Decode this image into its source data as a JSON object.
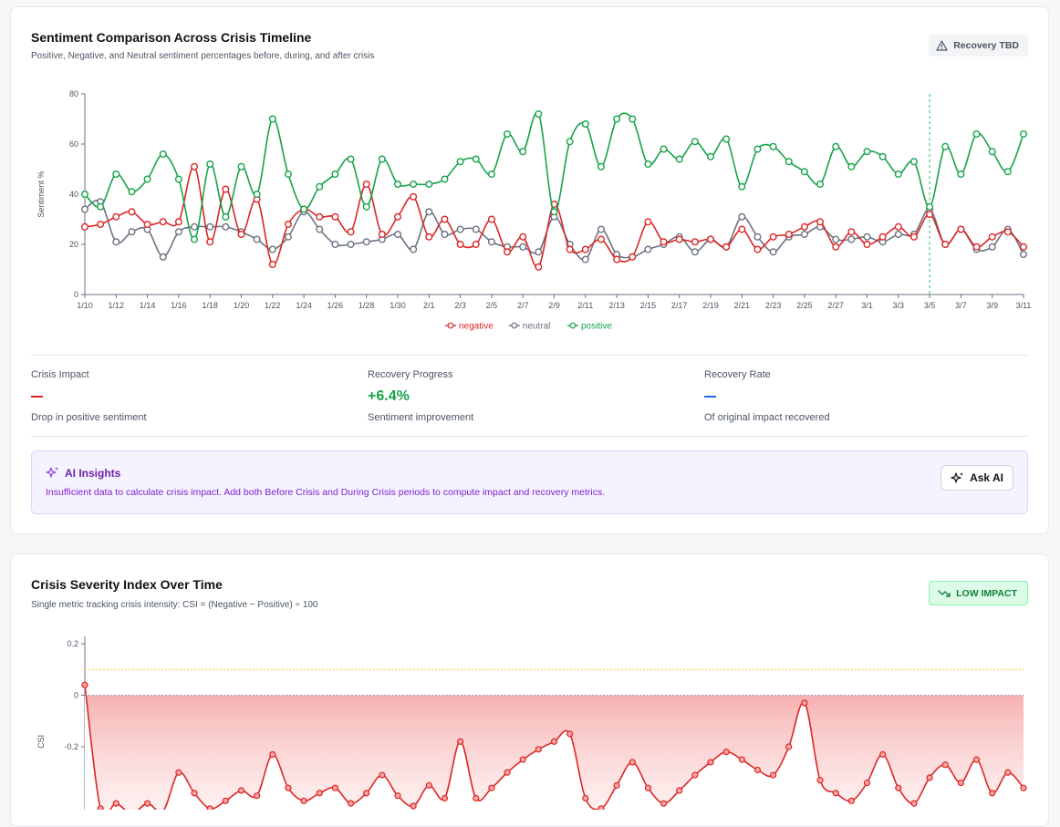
{
  "card1": {
    "title": "Sentiment Comparison Across Crisis Timeline",
    "subtitle": "Positive, Negative, and Neutral sentiment percentages before, during, and after crisis",
    "badge": "Recovery TBD"
  },
  "metrics": {
    "impact": {
      "label": "Crisis Impact",
      "value": "—",
      "desc": "Drop in positive sentiment"
    },
    "progress": {
      "label": "Recovery Progress",
      "value": "+6.4%",
      "desc": "Sentiment improvement"
    },
    "rate": {
      "label": "Recovery Rate",
      "value": "—",
      "desc": "Of original impact recovered"
    }
  },
  "ai": {
    "title": "AI Insights",
    "text": "Insufficient data to calculate crisis impact. Add both Before Crisis and During Crisis periods to compute impact and recovery metrics.",
    "button": "Ask AI"
  },
  "card2": {
    "title": "Crisis Severity Index Over Time",
    "subtitle": "Single metric tracking crisis intensity: CSI = (Negative − Positive) ÷ 100",
    "badge": "LOW IMPACT"
  },
  "colors": {
    "negative": "#dc2626",
    "neutral": "#6b7280",
    "positive": "#16a34a",
    "marker": "#22c55e",
    "threshold": "#facc15"
  },
  "chart_data": [
    {
      "type": "line",
      "ylabel": "Sentiment %",
      "ylim": [
        0,
        80
      ],
      "yticks": [
        0,
        20,
        40,
        60,
        80
      ],
      "xticks": [
        "1/10",
        "1/12",
        "1/14",
        "1/16",
        "1/18",
        "1/20",
        "1/22",
        "1/24",
        "1/26",
        "1/28",
        "1/30",
        "2/1",
        "2/3",
        "2/5",
        "2/7",
        "2/9",
        "2/11",
        "2/13",
        "2/15",
        "2/17",
        "2/19",
        "2/21",
        "2/23",
        "2/25",
        "2/27",
        "3/1",
        "3/3",
        "3/5",
        "3/7",
        "3/9",
        "3/11"
      ],
      "marker_x": "3/5",
      "legend": "bottom-center",
      "series": [
        {
          "name": "negative",
          "values": [
            27,
            28,
            31,
            33,
            28,
            29,
            29,
            51,
            21,
            42,
            24,
            38,
            12,
            28,
            34,
            31,
            31,
            25,
            44,
            24,
            31,
            39,
            23,
            30,
            20,
            20,
            30,
            17,
            23,
            11,
            36,
            18,
            18,
            22,
            14,
            15,
            29,
            21,
            22,
            21,
            22,
            19,
            26,
            18,
            23,
            24,
            27,
            29,
            19,
            25,
            20,
            23,
            27,
            23,
            32,
            20,
            26,
            19,
            23,
            25,
            19
          ]
        },
        {
          "name": "neutral",
          "values": [
            34,
            37,
            21,
            25,
            26,
            15,
            25,
            27,
            27,
            27,
            25,
            22,
            18,
            23,
            33,
            26,
            20,
            20,
            21,
            22,
            24,
            18,
            33,
            24,
            26,
            26,
            21,
            19,
            19,
            17,
            31,
            20,
            14,
            26,
            16,
            15,
            18,
            20,
            23,
            17,
            22,
            19,
            31,
            23,
            17,
            23,
            24,
            27,
            22,
            22,
            23,
            21,
            24,
            24,
            34,
            20,
            26,
            18,
            19,
            26,
            16
          ]
        },
        {
          "name": "positive",
          "values": [
            40,
            35,
            48,
            41,
            46,
            56,
            46,
            22,
            52,
            31,
            51,
            40,
            70,
            48,
            34,
            43,
            48,
            54,
            35,
            54,
            44,
            44,
            44,
            46,
            53,
            54,
            48,
            64,
            57,
            72,
            33,
            61,
            68,
            51,
            70,
            70,
            52,
            58,
            54,
            61,
            55,
            62,
            43,
            58,
            59,
            53,
            49,
            44,
            59,
            51,
            57,
            55,
            48,
            53,
            35,
            59,
            48,
            64,
            57,
            49,
            64
          ]
        }
      ]
    },
    {
      "type": "area",
      "ylabel": "CSI",
      "ylim": [
        -0.35,
        0.2
      ],
      "yticks": [
        0.2,
        0,
        -0.2
      ],
      "reference_lines": [
        0.1,
        0
      ],
      "series": [
        {
          "name": "",
          "values": [
            0.04,
            -0.44,
            -0.42,
            -0.46,
            -0.42,
            -0.45,
            -0.3,
            -0.38,
            -0.44,
            -0.41,
            -0.37,
            -0.39,
            -0.23,
            -0.36,
            -0.41,
            -0.38,
            -0.36,
            -0.42,
            -0.38,
            -0.31,
            -0.39,
            -0.43,
            -0.35,
            -0.4,
            -0.18,
            -0.4,
            -0.36,
            -0.3,
            -0.25,
            -0.21,
            -0.18,
            -0.15,
            -0.4,
            -0.44,
            -0.35,
            -0.26,
            -0.36,
            -0.42,
            -0.37,
            -0.31,
            -0.26,
            -0.22,
            -0.25,
            -0.29,
            -0.31,
            -0.2,
            -0.03,
            -0.33,
            -0.38,
            -0.41,
            -0.34,
            -0.23,
            -0.36,
            -0.42,
            -0.32,
            -0.27,
            -0.34,
            -0.25,
            -0.38,
            -0.3,
            -0.36
          ]
        }
      ]
    }
  ]
}
